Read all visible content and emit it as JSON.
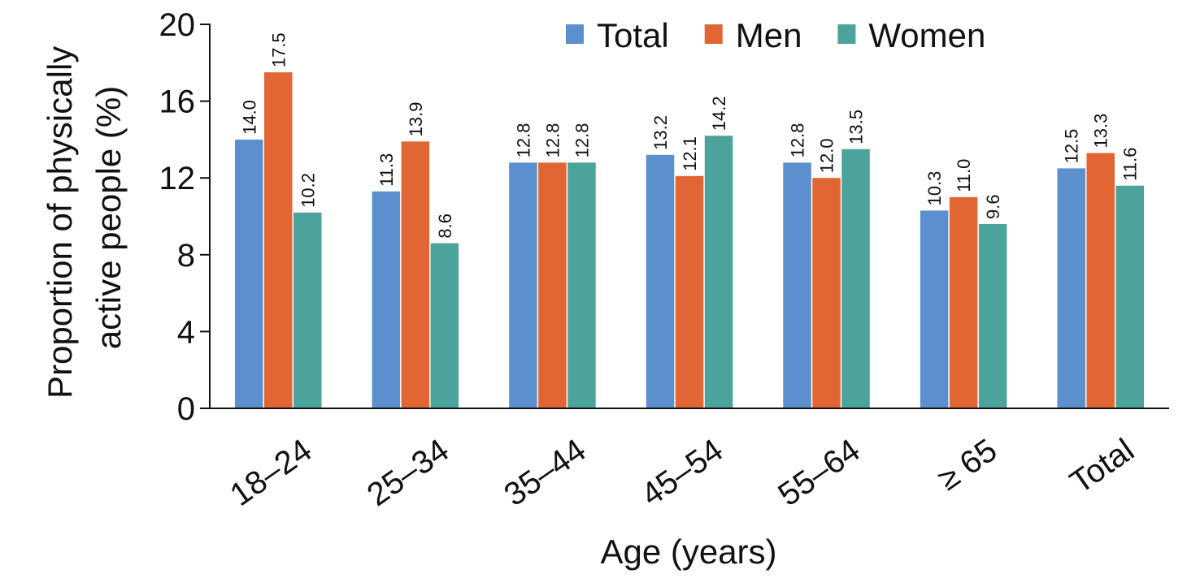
{
  "chart_data": {
    "type": "bar",
    "title": "",
    "xlabel": "Age (years)",
    "ylabel": [
      "Proportion of physically",
      "active people (%)"
    ],
    "ylim": [
      0,
      20
    ],
    "yticks": [
      0,
      4,
      8,
      12,
      16,
      20
    ],
    "grid": false,
    "legend_position": "top-right",
    "categories": [
      "18–24",
      "25–34",
      "35–44",
      "45–54",
      "55–64",
      "≥ 65",
      "Total"
    ],
    "series": [
      {
        "name": "Total",
        "color": "#5b8fcd",
        "values": [
          14.0,
          11.3,
          12.8,
          13.2,
          12.8,
          10.3,
          12.5
        ],
        "labels": [
          "14.0",
          "11.3",
          "12.8",
          "13.2",
          "12.8",
          "10.3",
          "12.5"
        ]
      },
      {
        "name": "Men",
        "color": "#e26633",
        "values": [
          17.5,
          13.9,
          12.8,
          12.1,
          12.0,
          11.0,
          13.3
        ],
        "labels": [
          "17.5",
          "13.9",
          "12.8",
          "12.1",
          "12.0",
          "11.0",
          "13.3"
        ]
      },
      {
        "name": "Women",
        "color": "#4ba39b",
        "values": [
          10.2,
          8.6,
          12.8,
          14.2,
          13.5,
          9.6,
          11.6
        ],
        "labels": [
          "10.2",
          "8.6",
          "12.8",
          "14.2",
          "13.5",
          "9.6",
          "11.6"
        ]
      }
    ]
  }
}
